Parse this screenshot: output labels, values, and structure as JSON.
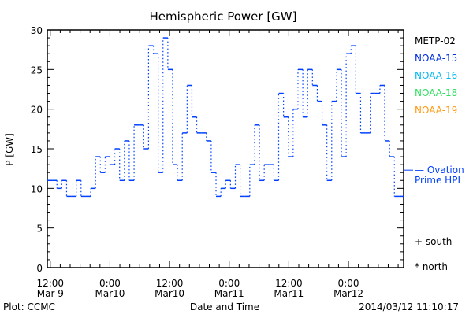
{
  "chart_data": {
    "type": "line",
    "title": "Hemispheric Power [GW]",
    "xlabel": "Date and Time",
    "ylabel": "P [GW]",
    "ylim": [
      0,
      30
    ],
    "xlim_hours_from_mar9_0000": [
      11.4,
      83.1
    ],
    "yticks": [
      0,
      5,
      10,
      15,
      20,
      25,
      30
    ],
    "xticks": [
      {
        "hour": 12,
        "line1": "12:00",
        "line2": "Mar 9"
      },
      {
        "hour": 24,
        "line1": "0:00",
        "line2": "Mar10"
      },
      {
        "hour": 36,
        "line1": "12:00",
        "line2": "Mar10"
      },
      {
        "hour": 48,
        "line1": "0:00",
        "line2": "Mar11"
      },
      {
        "hour": 60,
        "line1": "12:00",
        "line2": "Mar11"
      },
      {
        "hour": 72,
        "line1": "0:00",
        "line2": "Mar12"
      }
    ],
    "series": [
      {
        "name": "NOAA-15 step (Ovation Prime HPI)",
        "color": "#0040ff",
        "start_hour": 11.4,
        "step_hours": 0.97,
        "values": [
          11,
          11,
          10,
          11,
          9,
          9,
          11,
          9,
          9,
          10,
          14,
          12,
          14,
          13,
          15,
          11,
          16,
          11,
          18,
          18,
          15,
          28,
          27,
          12,
          29,
          25,
          13,
          11,
          17,
          23,
          19,
          17,
          17,
          16,
          12,
          9,
          10,
          11,
          10,
          13,
          9,
          9,
          13,
          18,
          11,
          13,
          13,
          11,
          22,
          19,
          14,
          20,
          25,
          19,
          25,
          23,
          21,
          18,
          11,
          21,
          25,
          14,
          27,
          28,
          22,
          17,
          17,
          22,
          22,
          23,
          16,
          14,
          9,
          9
        ]
      }
    ],
    "ovation_marker_value": 12.3,
    "legend": [
      {
        "label": "METP-02",
        "color": "#000000"
      },
      {
        "label": "NOAA-15",
        "color": "#0030e0"
      },
      {
        "label": "NOAA-16",
        "color": "#00b8f0"
      },
      {
        "label": "NOAA-18",
        "color": "#30e060"
      },
      {
        "label": "NOAA-19",
        "color": "#ff9a10"
      }
    ],
    "ovation_label_1": "— Ovation",
    "ovation_label_2": "Prime HPI",
    "south_label": "+ south",
    "north_label": "* north",
    "legend_placement": "right"
  },
  "footer": {
    "left": "Plot: CCMC",
    "timestamp": "2014/03/12 11:10:17"
  }
}
